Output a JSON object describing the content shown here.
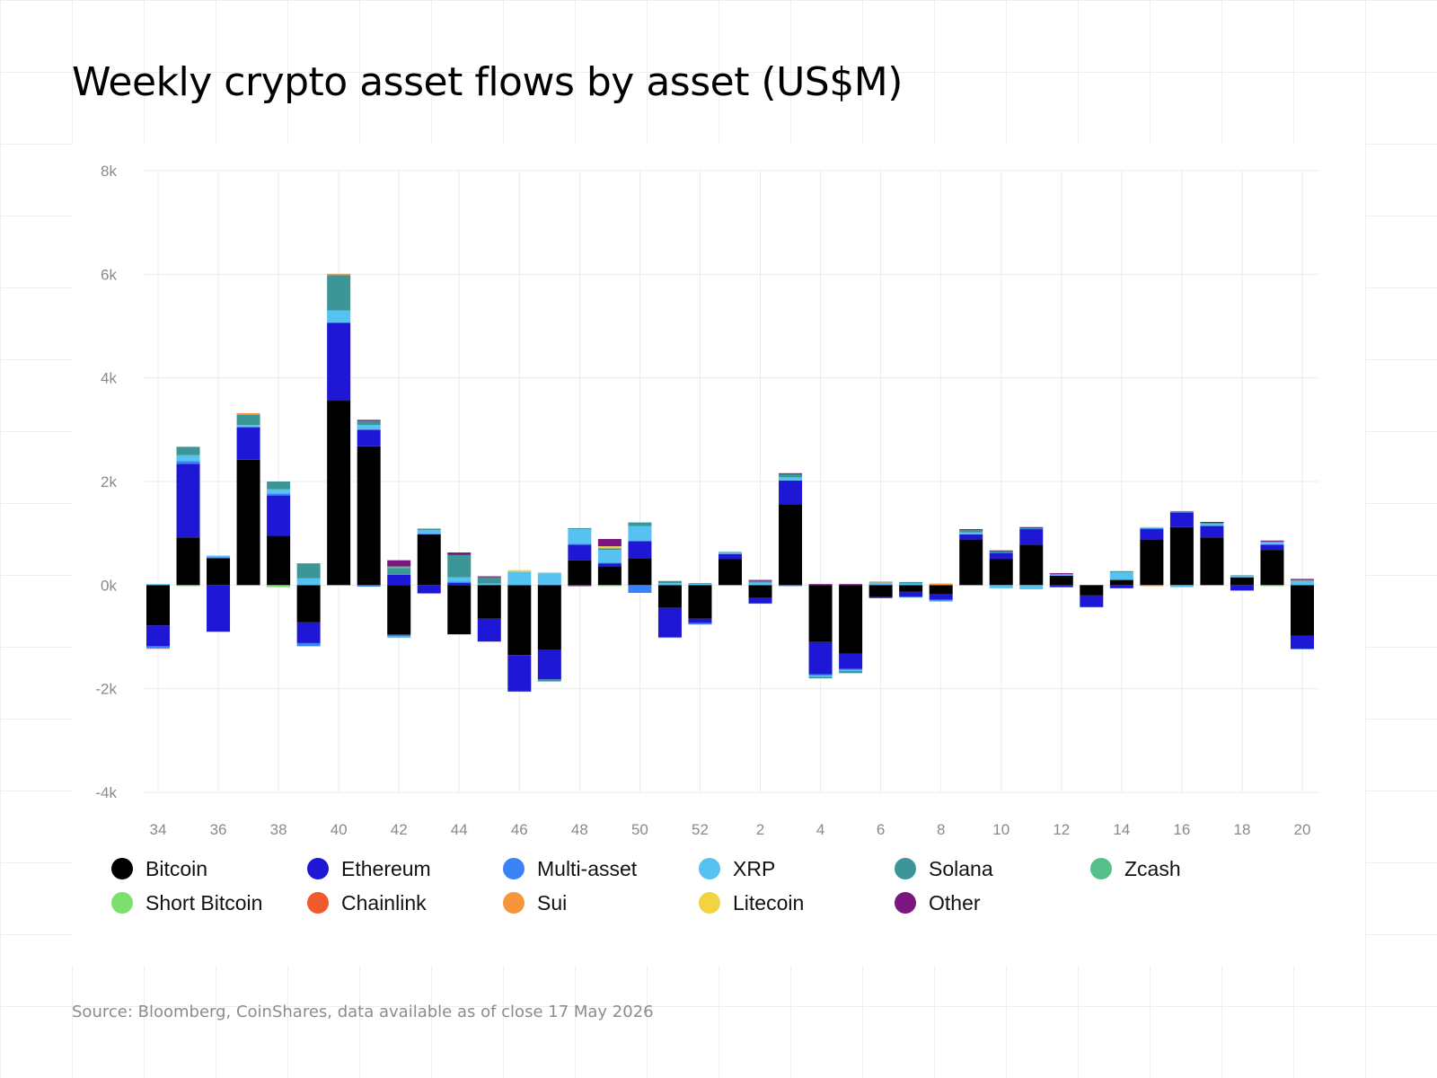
{
  "title": "Weekly crypto asset flows by asset (US$M)",
  "source": "Source: Bloomberg, CoinShares, data available as of close 17 May 2026",
  "chart_data": {
    "type": "bar",
    "stacked": true,
    "title": "Weekly crypto asset flows by asset (US$M)",
    "ylim": [
      -4000,
      8000
    ],
    "yticks": [
      8000,
      6000,
      4000,
      2000,
      0,
      -2000,
      -4000
    ],
    "ytick_labels": [
      "8k",
      "6k",
      "4k",
      "2k",
      "0k",
      "-2k",
      "-4k"
    ],
    "xtick_labels": [
      "34",
      "36",
      "38",
      "40",
      "42",
      "44",
      "46",
      "48",
      "50",
      "52",
      "2",
      "4",
      "6",
      "8",
      "10",
      "12",
      "14",
      "16",
      "18",
      "20"
    ],
    "categories": [
      "34",
      "35",
      "36",
      "37",
      "38",
      "39",
      "40",
      "41",
      "42",
      "43",
      "44",
      "45",
      "46",
      "47",
      "48",
      "49",
      "50",
      "51",
      "52",
      "1",
      "2",
      "3",
      "4",
      "5",
      "6",
      "7",
      "8",
      "9",
      "10",
      "11",
      "12",
      "13",
      "14",
      "15",
      "16",
      "17",
      "18",
      "19",
      "20"
    ],
    "grid": true,
    "legend_position": "bottom",
    "series": [
      {
        "name": "Bitcoin",
        "color": "#000000",
        "values": [
          -780,
          920,
          520,
          2420,
          950,
          -720,
          3560,
          2680,
          -960,
          980,
          -950,
          -650,
          -1350,
          -1250,
          480,
          360,
          520,
          -440,
          -650,
          500,
          -250,
          1560,
          -1100,
          -1320,
          -230,
          -130,
          -180,
          880,
          500,
          780,
          180,
          -200,
          100,
          880,
          1120,
          920,
          150,
          680,
          -980
        ]
      },
      {
        "name": "Ethereum",
        "color": "#1f17d6",
        "values": [
          -400,
          1420,
          -900,
          620,
          780,
          -400,
          1500,
          320,
          200,
          -160,
          40,
          -440,
          -700,
          -570,
          300,
          60,
          330,
          -560,
          -80,
          100,
          -100,
          460,
          -620,
          -300,
          -20,
          -90,
          -100,
          100,
          120,
          300,
          -40,
          -220,
          -60,
          200,
          280,
          220,
          -100,
          100,
          -250
        ]
      },
      {
        "name": "Multi-asset",
        "color": "#3b82f6",
        "values": [
          -30,
          50,
          20,
          20,
          40,
          -60,
          10,
          -30,
          -30,
          20,
          30,
          10,
          -10,
          10,
          20,
          10,
          -150,
          -20,
          -30,
          10,
          -10,
          -20,
          -30,
          -20,
          10,
          -20,
          -20,
          10,
          10,
          10,
          10,
          -10,
          0,
          20,
          10,
          10,
          -10,
          10,
          -10
        ]
      },
      {
        "name": "XRP",
        "color": "#56c2f2",
        "values": [
          20,
          120,
          30,
          30,
          80,
          130,
          230,
          90,
          -30,
          60,
          80,
          20,
          260,
          220,
          280,
          250,
          290,
          40,
          30,
          20,
          50,
          60,
          -20,
          -20,
          40,
          30,
          -20,
          30,
          -60,
          -80,
          10,
          0,
          150,
          10,
          -40,
          30,
          30,
          40,
          80
        ]
      },
      {
        "name": "Solana",
        "color": "#3c9596",
        "values": [
          0,
          160,
          0,
          200,
          150,
          290,
          680,
          80,
          130,
          30,
          430,
          120,
          0,
          -40,
          20,
          30,
          70,
          40,
          10,
          10,
          30,
          60,
          -30,
          -40,
          0,
          30,
          0,
          40,
          20,
          10,
          10,
          0,
          20,
          0,
          10,
          20,
          10,
          10,
          10
        ]
      },
      {
        "name": "Zcash",
        "color": "#55c08a",
        "values": [
          0,
          0,
          0,
          0,
          0,
          0,
          0,
          0,
          30,
          0,
          0,
          0,
          0,
          0,
          0,
          0,
          0,
          0,
          0,
          0,
          0,
          0,
          0,
          0,
          0,
          0,
          0,
          0,
          0,
          0,
          0,
          0,
          0,
          0,
          0,
          0,
          0,
          0,
          0
        ]
      },
      {
        "name": "Short Bitcoin",
        "color": "#7ee06c",
        "values": [
          0,
          -20,
          0,
          0,
          -40,
          0,
          0,
          0,
          0,
          0,
          0,
          0,
          0,
          0,
          0,
          -20,
          0,
          0,
          0,
          0,
          0,
          0,
          0,
          0,
          0,
          0,
          0,
          0,
          0,
          0,
          0,
          0,
          0,
          10,
          0,
          0,
          0,
          -20,
          0
        ]
      },
      {
        "name": "Chainlink",
        "color": "#ef5b2a",
        "values": [
          -20,
          0,
          0,
          0,
          0,
          0,
          0,
          0,
          0,
          0,
          0,
          0,
          0,
          0,
          0,
          0,
          0,
          0,
          0,
          0,
          0,
          0,
          0,
          0,
          0,
          0,
          0,
          0,
          0,
          0,
          0,
          0,
          0,
          0,
          10,
          0,
          0,
          0,
          10
        ]
      },
      {
        "name": "Sui",
        "color": "#f7953a",
        "values": [
          0,
          0,
          0,
          30,
          0,
          0,
          30,
          0,
          0,
          0,
          0,
          0,
          0,
          0,
          0,
          0,
          0,
          0,
          0,
          0,
          0,
          0,
          0,
          0,
          20,
          0,
          30,
          0,
          0,
          0,
          0,
          0,
          0,
          -20,
          0,
          0,
          0,
          0,
          0
        ]
      },
      {
        "name": "Litecoin",
        "color": "#f2d440",
        "values": [
          0,
          0,
          0,
          0,
          0,
          0,
          0,
          0,
          0,
          0,
          0,
          0,
          30,
          20,
          0,
          40,
          0,
          0,
          0,
          0,
          0,
          0,
          0,
          0,
          0,
          0,
          0,
          0,
          0,
          0,
          0,
          0,
          0,
          0,
          0,
          0,
          0,
          0,
          0
        ]
      },
      {
        "name": "Other",
        "color": "#7b1580",
        "values": [
          0,
          0,
          0,
          0,
          0,
          0,
          0,
          20,
          120,
          0,
          50,
          20,
          0,
          0,
          -20,
          140,
          0,
          0,
          0,
          0,
          20,
          20,
          20,
          20,
          0,
          0,
          0,
          20,
          20,
          20,
          20,
          0,
          0,
          0,
          0,
          20,
          0,
          20,
          20
        ]
      }
    ]
  }
}
